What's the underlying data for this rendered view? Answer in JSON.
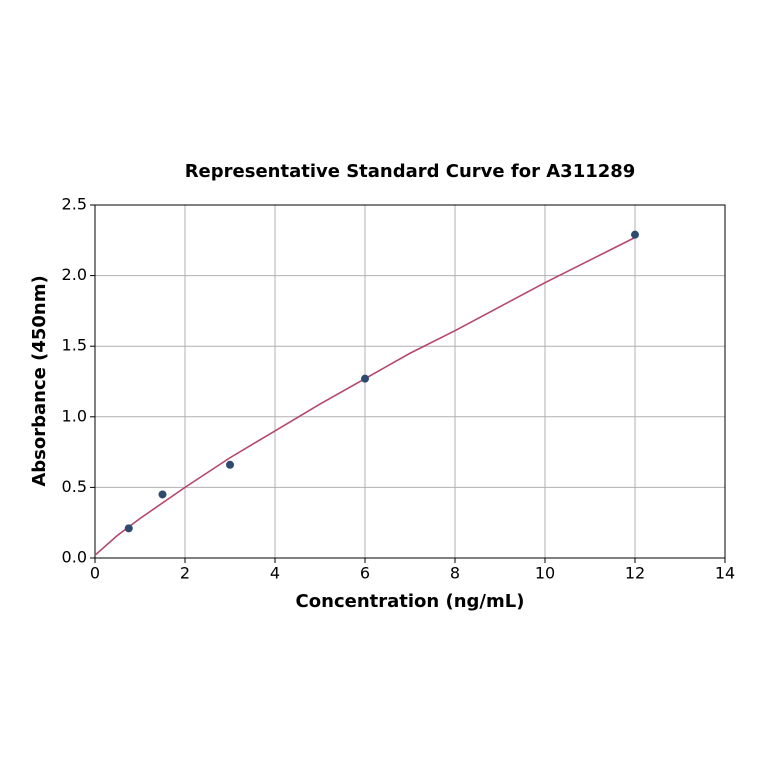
{
  "chart_data": {
    "type": "scatter",
    "title": "Representative Standard Curve for A311289",
    "x_label": "Concentration (ng/mL)",
    "y_label": "Absorbance (450nm)",
    "xlim": [
      0,
      14
    ],
    "ylim": [
      0,
      2.5
    ],
    "xticks": [
      0,
      2,
      4,
      6,
      8,
      10,
      12,
      14
    ],
    "yticks": [
      {
        "value": 0,
        "label": "0.0"
      },
      {
        "value": 0.5,
        "label": "0.5"
      },
      {
        "value": 1,
        "label": "1.0"
      },
      {
        "value": 1.5,
        "label": "1.5"
      },
      {
        "value": 2,
        "label": "2.0"
      },
      {
        "value": 2.5,
        "label": "2.5"
      }
    ],
    "grid": true,
    "series": [
      {
        "type": "line",
        "color": "#b5476b",
        "x": [
          0,
          0.5,
          1,
          2,
          3,
          4,
          5,
          6,
          7,
          8,
          9,
          10,
          11,
          12
        ],
        "values": [
          0.02,
          0.16,
          0.28,
          0.5,
          0.71,
          0.9,
          1.09,
          1.27,
          1.45,
          1.61,
          1.78,
          1.95,
          2.11,
          2.27
        ]
      },
      {
        "type": "scatter",
        "color": "#2e4a6e",
        "x": [
          0.75,
          1.5,
          3,
          6,
          12
        ],
        "values": [
          0.21,
          0.45,
          0.66,
          1.27,
          2.29
        ]
      }
    ]
  }
}
